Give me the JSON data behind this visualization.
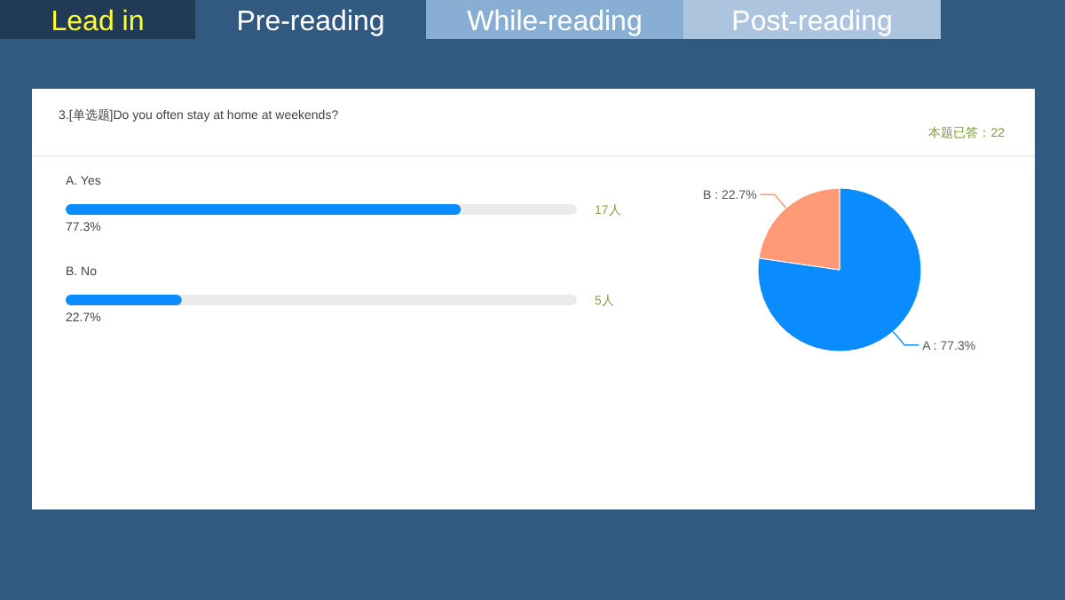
{
  "chart_data": [
    {
      "type": "bar",
      "orientation": "horizontal",
      "title": "3.[单选题]Do you often stay at home at weekends?",
      "categories": [
        "A. Yes",
        "B. No"
      ],
      "values": [
        77.3,
        22.7
      ],
      "color": "#0a8cff",
      "value_labels": [
        "77.3%",
        "22.7%"
      ],
      "annotations": [
        "17人",
        "5人",
        "本题已答：22"
      ]
    },
    {
      "type": "pie",
      "categories": [
        "A",
        "B"
      ],
      "values": [
        77.3,
        22.7
      ],
      "colors": [
        "#0a8cff",
        "#ff9a76"
      ],
      "value_labels": [
        "77.3%",
        "22.7%"
      ]
    },
    {
      "type": "other",
      "annotations": [
        "Lead in",
        "Pre-reading",
        "While-reading",
        "Post-reading"
      ]
    }
  ]
}
